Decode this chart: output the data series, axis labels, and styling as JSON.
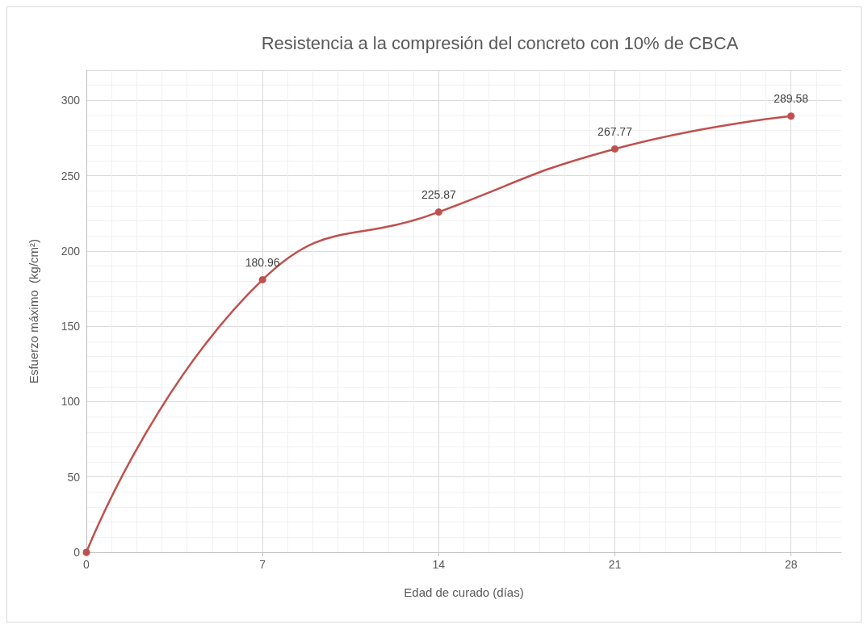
{
  "chart_data": {
    "type": "line",
    "title": "Resistencia a la compresión del concreto con 10% de CBCA",
    "xlabel": "Edad de curado (días)",
    "ylabel": "Esfuerzo máximo  (kg/cm²)",
    "x": [
      0,
      7,
      14,
      21,
      28
    ],
    "series": [
      {
        "color": "#c0504d",
        "values": [
          0,
          180.96,
          225.87,
          267.77,
          289.58
        ],
        "value_labels": [
          null,
          "180.96",
          "225.87",
          "267.77",
          "289.58"
        ]
      }
    ],
    "xlim": [
      0,
      30
    ],
    "xticks": [
      0,
      7,
      14,
      21,
      28
    ],
    "ylim": [
      0,
      320
    ],
    "yticks": [
      0,
      50,
      100,
      150,
      200,
      250,
      300
    ],
    "grid": true,
    "marker": "circle",
    "line_style": "solid"
  }
}
